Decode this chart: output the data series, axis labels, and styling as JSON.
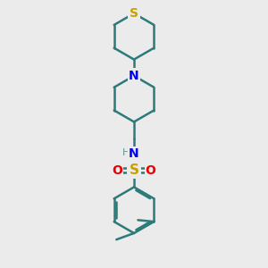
{
  "background_color": "#ebebeb",
  "bond_color": "#2d7a7a",
  "S_color": "#c8a000",
  "N_color": "#0000ee",
  "O_color": "#ee0000",
  "H_color": "#5a9a9a",
  "bond_width": 1.8,
  "figsize": [
    3.0,
    3.0
  ],
  "dpi": 100,
  "xlim": [
    3.0,
    7.0
  ],
  "ylim": [
    1.5,
    9.8
  ]
}
